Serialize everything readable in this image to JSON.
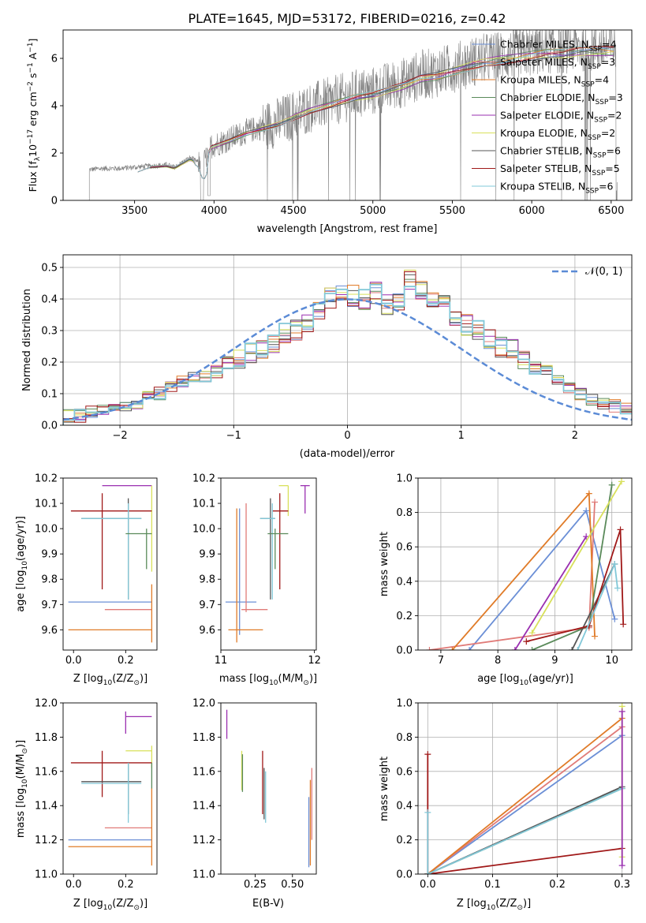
{
  "figure_title": "PLATE=1645, MJD=53172, FIBERID=0216, z=0.42",
  "colors": {
    "chabrier_miles": "#6b8fd6",
    "salpeter_miles": "#e07b78",
    "kroupa_miles": "#e07b28",
    "chabrier_elodie": "#5a8a5a",
    "salpeter_elodie": "#9a2fb0",
    "kroupa_elodie": "#d8e05a",
    "chabrier_stelib": "#555555",
    "salpeter_stelib": "#a01818",
    "kroupa_stelib": "#82c8d8",
    "spectrum": "#808080",
    "normal_curve": "#5b8bd6",
    "pink": "#e888c0"
  },
  "chart_data": [
    {
      "id": "spectrum",
      "type": "line",
      "xlabel": "wavelength [Angstrom, rest frame]",
      "ylabel": "Flux [f",
      "ylabel_sub": "λ",
      "ylabel_rest": "10",
      "ylabel_exp": "−17",
      "ylabel_units": " erg cm",
      "ylabel_exp2": "−2",
      "ylabel_units2": " s",
      "ylabel_exp3": "−1",
      "ylabel_units3": " A",
      "ylabel_exp4": "−1",
      "ylabel_end": "]",
      "xlim": [
        3050,
        6630
      ],
      "ylim": [
        0,
        7.2
      ],
      "xticks": [
        3500,
        4000,
        4500,
        5000,
        5500,
        6000,
        6500
      ],
      "yticks": [
        0,
        2,
        4,
        6
      ],
      "legend": [
        {
          "pre": "Chabrier MILES, N",
          "sub": "SSP",
          "post": "=4",
          "color": "chabrier_miles"
        },
        {
          "pre": "Salpeter MILES, N",
          "sub": "SSP",
          "post": "=3",
          "color": "salpeter_miles"
        },
        {
          "pre": "Kroupa MILES, N",
          "sub": "SSP",
          "post": "=4",
          "color": "kroupa_miles"
        },
        {
          "pre": "Chabrier ELODIE, N",
          "sub": "SSP",
          "post": "=3",
          "color": "chabrier_elodie"
        },
        {
          "pre": "Salpeter ELODIE, N",
          "sub": "SSP",
          "post": "=2",
          "color": "salpeter_elodie"
        },
        {
          "pre": "Kroupa ELODIE, N",
          "sub": "SSP",
          "post": "=2",
          "color": "kroupa_elodie"
        },
        {
          "pre": "Chabrier STELIB, N",
          "sub": "SSP",
          "post": "=6",
          "color": "chabrier_stelib"
        },
        {
          "pre": "Salpeter STELIB, N",
          "sub": "SSP",
          "post": "=5",
          "color": "salpeter_stelib"
        },
        {
          "pre": "Kroupa STELIB, N",
          "sub": "SSP",
          "post": "=6",
          "color": "kroupa_stelib"
        }
      ],
      "continuum": [
        [
          3215,
          1.3
        ],
        [
          3300,
          1.35
        ],
        [
          3400,
          1.35
        ],
        [
          3500,
          1.4
        ],
        [
          3600,
          1.45
        ],
        [
          3700,
          1.5
        ],
        [
          3750,
          1.4
        ],
        [
          3850,
          1.8
        ],
        [
          3930,
          1.5
        ],
        [
          3980,
          2.3
        ],
        [
          4100,
          2.6
        ],
        [
          4200,
          2.9
        ],
        [
          4300,
          3.1
        ],
        [
          4400,
          3.3
        ],
        [
          4500,
          3.6
        ],
        [
          4600,
          3.9
        ],
        [
          4700,
          4.1
        ],
        [
          4800,
          4.3
        ],
        [
          4900,
          4.5
        ],
        [
          5000,
          4.6
        ],
        [
          5100,
          4.8
        ],
        [
          5200,
          5.0
        ],
        [
          5300,
          5.3
        ],
        [
          5400,
          5.4
        ],
        [
          5500,
          5.6
        ],
        [
          5600,
          5.8
        ],
        [
          5700,
          6.0
        ],
        [
          5800,
          6.1
        ],
        [
          5900,
          6.2
        ],
        [
          6000,
          6.3
        ],
        [
          6100,
          6.4
        ],
        [
          6200,
          6.4
        ],
        [
          6300,
          6.5
        ],
        [
          6400,
          6.5
        ],
        [
          6500,
          6.5
        ],
        [
          6530,
          6.5
        ]
      ]
    },
    {
      "id": "residuals",
      "type": "line",
      "xlabel": "(data-model)/error",
      "ylabel": "Normed distribution",
      "xlim": [
        -2.5,
        2.5
      ],
      "ylim": [
        0,
        0.54
      ],
      "xticks": [
        -2,
        -1,
        0,
        1,
        2
      ],
      "yticks": [
        0.0,
        0.1,
        0.2,
        0.3,
        0.4,
        0.5
      ],
      "grid": true,
      "legend_label": "𝒩(0, 1)",
      "legend_position": "top-right",
      "bin_width": 0.1,
      "hist_heights": [
        0.03,
        0.03,
        0.04,
        0.05,
        0.06,
        0.06,
        0.07,
        0.09,
        0.1,
        0.12,
        0.14,
        0.15,
        0.15,
        0.17,
        0.2,
        0.21,
        0.23,
        0.24,
        0.26,
        0.29,
        0.3,
        0.32,
        0.36,
        0.4,
        0.42,
        0.41,
        0.4,
        0.42,
        0.38,
        0.4,
        0.46,
        0.43,
        0.41,
        0.38,
        0.35,
        0.32,
        0.3,
        0.27,
        0.25,
        0.24,
        0.21,
        0.18,
        0.17,
        0.14,
        0.12,
        0.1,
        0.08,
        0.07,
        0.06,
        0.05
      ]
    },
    {
      "id": "age_vs_Z",
      "type": "errorbar",
      "xlabel": "Z [log",
      "xlabel_sub": "10",
      "xlabel_rest": "(Z/Z",
      "xlabel_sub2": "⊙",
      "xlabel_end": ")]",
      "ylabel": "age  [log",
      "ylabel_sub": "10",
      "ylabel_rest": "(age/yr)]",
      "xlim": [
        -0.04,
        0.32
      ],
      "ylim": [
        9.52,
        10.2
      ],
      "xticks": [
        0.0,
        0.2
      ],
      "yticks": [
        9.6,
        9.7,
        9.8,
        9.9,
        10.0,
        10.1,
        10.2
      ],
      "points": [
        {
          "x": 0.2,
          "y": 10.17,
          "xl": 0.11,
          "xr": 0.3,
          "yl": 10.17,
          "yh": 10.17,
          "c": "salpeter_elodie"
        },
        {
          "x": 0.3,
          "y": 10.17,
          "xl": 0.3,
          "xr": 0.3,
          "yl": 9.83,
          "yh": 10.17,
          "c": "kroupa_elodie"
        },
        {
          "x": 0.11,
          "y": 10.07,
          "xl": -0.01,
          "xr": 0.3,
          "yl": 9.76,
          "yh": 10.14,
          "c": "salpeter_stelib"
        },
        {
          "x": 0.21,
          "y": 10.04,
          "xl": 0.03,
          "xr": 0.26,
          "yl": 9.72,
          "yh": 10.12,
          "c": "chabrier_stelib"
        },
        {
          "x": 0.21,
          "y": 10.04,
          "xl": 0.03,
          "xr": 0.26,
          "yl": 9.72,
          "yh": 10.1,
          "c": "kroupa_stelib"
        },
        {
          "x": 0.28,
          "y": 9.98,
          "xl": 0.2,
          "xr": 0.3,
          "yl": 9.84,
          "yh": 10.0,
          "c": "chabrier_elodie"
        },
        {
          "x": 0.2,
          "y": 9.71,
          "xl": -0.02,
          "xr": 0.3,
          "yl": 9.71,
          "yh": 9.71,
          "c": "chabrier_miles"
        },
        {
          "x": 0.22,
          "y": 9.68,
          "xl": 0.12,
          "xr": 0.3,
          "yl": 9.68,
          "yh": 9.68,
          "c": "salpeter_miles"
        },
        {
          "x": 0.3,
          "y": 9.6,
          "xl": -0.02,
          "xr": 0.3,
          "yl": 9.55,
          "yh": 9.78,
          "c": "kroupa_miles"
        }
      ]
    },
    {
      "id": "age_vs_mass",
      "type": "errorbar",
      "xlabel": "mass [log",
      "xlabel_sub": "10",
      "xlabel_rest": "(M/M",
      "xlabel_sub2": "⊙",
      "xlabel_end": ")]",
      "xlim": [
        11.0,
        12.02
      ],
      "ylim": [
        9.52,
        10.2
      ],
      "xticks": [
        11,
        12
      ],
      "yticks": [
        9.6,
        9.7,
        9.8,
        9.9,
        10.0,
        10.1,
        10.2
      ],
      "points": [
        {
          "x": 11.9,
          "y": 10.17,
          "xl": 11.85,
          "xr": 11.95,
          "yl": 10.06,
          "yh": 10.17,
          "c": "salpeter_elodie"
        },
        {
          "x": 11.72,
          "y": 10.17,
          "xl": 11.62,
          "xr": 11.72,
          "yl": 10.05,
          "yh": 10.17,
          "c": "kroupa_elodie"
        },
        {
          "x": 11.63,
          "y": 10.07,
          "xl": 11.55,
          "xr": 11.72,
          "yl": 9.76,
          "yh": 10.14,
          "c": "salpeter_stelib"
        },
        {
          "x": 11.53,
          "y": 10.04,
          "xl": 11.42,
          "xr": 11.58,
          "yl": 9.72,
          "yh": 10.12,
          "c": "chabrier_stelib"
        },
        {
          "x": 11.55,
          "y": 10.04,
          "xl": 11.42,
          "xr": 11.58,
          "yl": 9.72,
          "yh": 10.1,
          "c": "kroupa_stelib"
        },
        {
          "x": 11.58,
          "y": 9.98,
          "xl": 11.5,
          "xr": 11.72,
          "yl": 9.84,
          "yh": 10.0,
          "c": "chabrier_elodie"
        },
        {
          "x": 11.2,
          "y": 9.71,
          "xl": 11.05,
          "xr": 11.38,
          "yl": 9.58,
          "yh": 10.08,
          "c": "chabrier_miles"
        },
        {
          "x": 11.27,
          "y": 9.68,
          "xl": 11.22,
          "xr": 11.5,
          "yl": 9.67,
          "yh": 10.1,
          "c": "salpeter_miles"
        },
        {
          "x": 11.17,
          "y": 9.6,
          "xl": 11.08,
          "xr": 11.45,
          "yl": 9.55,
          "yh": 10.08,
          "c": "kroupa_miles"
        }
      ]
    },
    {
      "id": "weight_vs_age",
      "type": "line",
      "xlabel": "age  [log",
      "xlabel_sub": "10",
      "xlabel_rest": "(age/yr)]",
      "ylabel": "mass weight",
      "xlim": [
        6.6,
        10.35
      ],
      "ylim": [
        0,
        1.0
      ],
      "xticks": [
        7,
        8,
        9,
        10
      ],
      "yticks": [
        0.0,
        0.2,
        0.4,
        0.6,
        0.8,
        1.0
      ],
      "grid": true,
      "series": [
        {
          "c": "chabrier_miles",
          "pts": [
            [
              7.5,
              0.0
            ],
            [
              9.55,
              0.81
            ],
            [
              10.05,
              0.18
            ]
          ]
        },
        {
          "c": "salpeter_miles",
          "pts": [
            [
              6.8,
              0.0
            ],
            [
              9.6,
              0.13
            ],
            [
              9.7,
              0.86
            ]
          ]
        },
        {
          "c": "kroupa_miles",
          "pts": [
            [
              7.2,
              0.0
            ],
            [
              9.6,
              0.91
            ],
            [
              9.7,
              0.08
            ]
          ]
        },
        {
          "c": "chabrier_elodie",
          "pts": [
            [
              8.6,
              0.0
            ],
            [
              9.6,
              0.14
            ],
            [
              10.0,
              0.96
            ]
          ]
        },
        {
          "c": "salpeter_elodie",
          "pts": [
            [
              8.3,
              0.0
            ],
            [
              9.55,
              0.66
            ]
          ]
        },
        {
          "c": "kroupa_elodie",
          "pts": [
            [
              8.6,
              0.1
            ],
            [
              10.17,
              0.98
            ]
          ]
        },
        {
          "c": "chabrier_stelib",
          "pts": [
            [
              9.3,
              0.0
            ],
            [
              10.05,
              0.5
            ]
          ]
        },
        {
          "c": "salpeter_stelib",
          "pts": [
            [
              8.5,
              0.05
            ],
            [
              9.6,
              0.14
            ],
            [
              10.15,
              0.7
            ],
            [
              10.2,
              0.15
            ]
          ]
        },
        {
          "c": "kroupa_stelib",
          "pts": [
            [
              9.4,
              0.0
            ],
            [
              10.05,
              0.5
            ],
            [
              10.1,
              0.36
            ]
          ]
        }
      ]
    },
    {
      "id": "mass_vs_Z",
      "type": "errorbar",
      "xlabel": "Z [log",
      "xlabel_sub": "10",
      "xlabel_rest": "(Z/Z",
      "xlabel_sub2": "⊙",
      "xlabel_end": ")]",
      "ylabel": "mass [log",
      "ylabel_sub": "10",
      "ylabel_rest": "(M/M",
      "ylabel_sub2": "⊙",
      "ylabel_end": ")]",
      "xlim": [
        -0.04,
        0.32
      ],
      "ylim": [
        11.0,
        12.0
      ],
      "xticks": [
        0.0,
        0.2
      ],
      "yticks": [
        11.0,
        11.2,
        11.4,
        11.6,
        11.8,
        12.0
      ],
      "points": [
        {
          "x": 0.2,
          "y": 11.92,
          "xl": 0.2,
          "xr": 0.3,
          "yl": 11.82,
          "yh": 11.95,
          "c": "salpeter_elodie"
        },
        {
          "x": 0.3,
          "y": 11.72,
          "xl": 0.2,
          "xr": 0.3,
          "yl": 11.62,
          "yh": 11.75,
          "c": "kroupa_elodie"
        },
        {
          "x": 0.11,
          "y": 11.65,
          "xl": -0.01,
          "xr": 0.3,
          "yl": 11.45,
          "yh": 11.72,
          "c": "salpeter_stelib"
        },
        {
          "x": 0.21,
          "y": 11.54,
          "xl": 0.03,
          "xr": 0.26,
          "yl": 11.35,
          "yh": 11.65,
          "c": "chabrier_stelib"
        },
        {
          "x": 0.21,
          "y": 11.53,
          "xl": 0.03,
          "xr": 0.26,
          "yl": 11.3,
          "yh": 11.65,
          "c": "kroupa_stelib"
        },
        {
          "x": 0.3,
          "y": 11.6,
          "xl": 0.3,
          "xr": 0.3,
          "yl": 11.5,
          "yh": 11.65,
          "c": "chabrier_elodie"
        },
        {
          "x": 0.2,
          "y": 11.2,
          "xl": -0.02,
          "xr": 0.3,
          "yl": 11.2,
          "yh": 11.2,
          "c": "chabrier_miles"
        },
        {
          "x": 0.22,
          "y": 11.27,
          "xl": 0.12,
          "xr": 0.3,
          "yl": 11.27,
          "yh": 11.27,
          "c": "salpeter_miles"
        },
        {
          "x": 0.3,
          "y": 11.16,
          "xl": -0.02,
          "xr": 0.3,
          "yl": 11.05,
          "yh": 11.5,
          "c": "kroupa_miles"
        }
      ]
    },
    {
      "id": "mass_vs_ebv",
      "type": "errorbar",
      "xlabel": "E(B-V)",
      "xlim": [
        0.02,
        0.66
      ],
      "ylim": [
        11.0,
        12.0
      ],
      "xticks": [
        0.25,
        0.5
      ],
      "yticks": [
        11.0,
        11.2,
        11.4,
        11.6,
        11.8,
        12.0
      ],
      "points": [
        {
          "x": 0.06,
          "y": 11.88,
          "xl": 0.06,
          "xr": 0.06,
          "yl": 11.79,
          "yh": 11.96,
          "c": "salpeter_elodie"
        },
        {
          "x": 0.16,
          "y": 11.62,
          "xl": 0.16,
          "xr": 0.16,
          "yl": 11.49,
          "yh": 11.72,
          "c": "kroupa_elodie"
        },
        {
          "x": 0.165,
          "y": 11.62,
          "xl": 0.165,
          "xr": 0.165,
          "yl": 11.48,
          "yh": 11.7,
          "c": "chabrier_elodie"
        },
        {
          "x": 0.3,
          "y": 11.55,
          "xl": 0.3,
          "xr": 0.3,
          "yl": 11.35,
          "yh": 11.72,
          "c": "salpeter_stelib"
        },
        {
          "x": 0.31,
          "y": 11.5,
          "xl": 0.31,
          "xr": 0.31,
          "yl": 11.32,
          "yh": 11.62,
          "c": "chabrier_stelib"
        },
        {
          "x": 0.32,
          "y": 11.45,
          "xl": 0.32,
          "xr": 0.32,
          "yl": 11.3,
          "yh": 11.6,
          "c": "kroupa_stelib"
        },
        {
          "x": 0.62,
          "y": 11.3,
          "xl": 0.62,
          "xr": 0.62,
          "yl": 11.05,
          "yh": 11.55,
          "c": "kroupa_miles"
        },
        {
          "x": 0.63,
          "y": 11.4,
          "xl": 0.63,
          "xr": 0.63,
          "yl": 11.2,
          "yh": 11.62,
          "c": "salpeter_miles"
        },
        {
          "x": 0.61,
          "y": 11.25,
          "xl": 0.61,
          "xr": 0.61,
          "yl": 11.04,
          "yh": 11.45,
          "c": "chabrier_miles"
        }
      ]
    },
    {
      "id": "weight_vs_Z",
      "type": "line",
      "xlabel": "Z [log",
      "xlabel_sub": "10",
      "xlabel_rest": "(Z/Z",
      "xlabel_sub2": "⊙",
      "xlabel_end": ")]",
      "ylabel": "mass weight",
      "xlim": [
        -0.015,
        0.315
      ],
      "ylim": [
        0,
        1.0
      ],
      "xticks": [
        0.0,
        0.1,
        0.2,
        0.3
      ],
      "yticks": [
        0.0,
        0.2,
        0.4,
        0.6,
        0.8,
        1.0
      ],
      "grid": true,
      "series": [
        {
          "c": "chabrier_miles",
          "pts": [
            [
              0.0,
              0.0
            ],
            [
              0.3,
              0.81
            ]
          ]
        },
        {
          "c": "salpeter_miles",
          "pts": [
            [
              0.0,
              0.0
            ],
            [
              0.3,
              0.86
            ]
          ]
        },
        {
          "c": "kroupa_miles",
          "pts": [
            [
              0.0,
              0.0
            ],
            [
              0.3,
              0.91
            ]
          ]
        },
        {
          "c": "chabrier_elodie",
          "pts": [
            [
              0.0,
              0.0
            ],
            [
              0.3,
              0.5
            ]
          ]
        },
        {
          "c": "chabrier_stelib",
          "pts": [
            [
              0.0,
              0.0
            ],
            [
              0.3,
              0.51
            ]
          ]
        },
        {
          "c": "salpeter_stelib",
          "pts": [
            [
              0.0,
              0.7
            ],
            [
              0.0,
              0.0
            ],
            [
              0.3,
              0.15
            ]
          ]
        },
        {
          "c": "kroupa_stelib",
          "pts": [
            [
              0.0,
              0.36
            ],
            [
              0.0,
              0.0
            ],
            [
              0.3,
              0.5
            ]
          ]
        },
        {
          "c": "kroupa_elodie",
          "pts": [
            [
              0.3,
              0.98
            ],
            [
              0.3,
              0.1
            ]
          ]
        },
        {
          "c": "salpeter_elodie",
          "pts": [
            [
              0.3,
              0.95
            ],
            [
              0.3,
              0.05
            ]
          ]
        }
      ]
    }
  ]
}
